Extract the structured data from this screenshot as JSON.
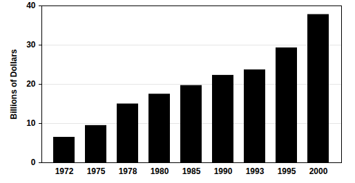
{
  "chart_data": {
    "type": "bar",
    "y_label": "Billions of Dollars",
    "categories": [
      "1972",
      "1975",
      "1978",
      "1980",
      "1985",
      "1990",
      "1993",
      "1995",
      "2000"
    ],
    "values": [
      6.5,
      9.5,
      15,
      17.5,
      19.7,
      22.3,
      23.7,
      29.3,
      37.8
    ],
    "color": "#000000",
    "ylim": [
      0,
      40
    ],
    "yticks": [
      0,
      10,
      20,
      30,
      40
    ],
    "grid": true
  }
}
